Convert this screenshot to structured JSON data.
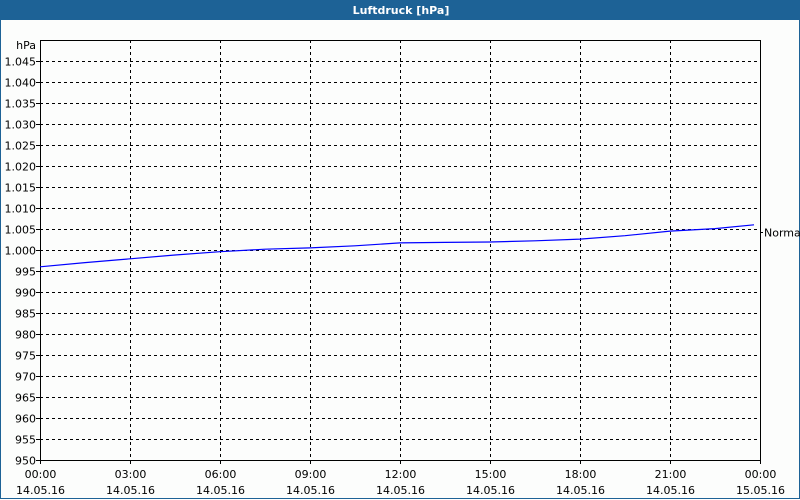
{
  "window": {
    "title": "Luftdruck [hPa]"
  },
  "colors": {
    "title_bar": "#1d6296",
    "series": "#0000ff",
    "grid": "#000000"
  },
  "chart_data": {
    "type": "line",
    "title": "Luftdruck [hPa]",
    "ylabel": "hPa",
    "ylim": [
      950,
      1050
    ],
    "yticks": [
      950,
      955,
      960,
      965,
      970,
      975,
      980,
      985,
      990,
      995,
      1000,
      1005,
      1010,
      1015,
      1020,
      1025,
      1030,
      1035,
      1040,
      1045
    ],
    "ytick_labels": [
      "950",
      "955",
      "960",
      "965",
      "970",
      "975",
      "980",
      "985",
      "990",
      "995",
      "1.000",
      "1.005",
      "1.010",
      "1.015",
      "1.020",
      "1.025",
      "1.030",
      "1.035",
      "1.040",
      "1.045"
    ],
    "xlim_hours": [
      0,
      24
    ],
    "xticks_hours": [
      0,
      3,
      6,
      9,
      12,
      15,
      18,
      21,
      24
    ],
    "xtick_labels": [
      [
        "00:00",
        "14.05.16"
      ],
      [
        "03:00",
        "14.05.16"
      ],
      [
        "06:00",
        "14.05.16"
      ],
      [
        "09:00",
        "14.05.16"
      ],
      [
        "12:00",
        "14.05.16"
      ],
      [
        "15:00",
        "14.05.16"
      ],
      [
        "18:00",
        "14.05.16"
      ],
      [
        "21:00",
        "14.05.16"
      ],
      [
        "00:00",
        "15.05.16"
      ]
    ],
    "grid": true,
    "series": [
      {
        "x_hours": [
          0,
          1.5,
          3,
          4.5,
          6,
          7.5,
          9,
          10.5,
          12,
          13.5,
          15,
          16.5,
          18,
          19.5,
          21,
          22.5,
          23.8
        ],
        "values": [
          996.0,
          997.0,
          997.9,
          998.8,
          999.6,
          1000.2,
          1000.5,
          1001.0,
          1001.7,
          1001.8,
          1001.9,
          1002.2,
          1002.6,
          1003.4,
          1004.5,
          1005.1,
          1006.0
        ]
      }
    ],
    "annotations": [
      {
        "label": "Normal",
        "value": 1004.3
      }
    ]
  }
}
